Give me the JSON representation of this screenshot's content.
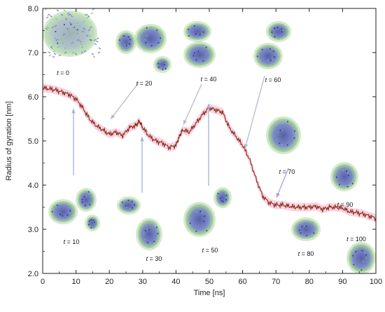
{
  "chart_data": {
    "type": "line",
    "xlabel": "Time [ns]",
    "ylabel": "Radius of gyration [nm]",
    "xlim": [
      0,
      100
    ],
    "ylim": [
      2.0,
      8.0
    ],
    "x_ticks": [
      0,
      10,
      20,
      30,
      40,
      50,
      60,
      70,
      80,
      90,
      100
    ],
    "y_ticks": [
      "2.0",
      "3.0",
      "4.0",
      "5.0",
      "6.0",
      "7.0",
      "8.0"
    ],
    "grid": false,
    "line_color": "#8b2a10",
    "band_color": "#f6c6dc",
    "series": [
      {
        "x": [
          0,
          2,
          4,
          6,
          8,
          10,
          12,
          14,
          16,
          18,
          20,
          22,
          24,
          26,
          28,
          29,
          30,
          32,
          34,
          36,
          38,
          40,
          41,
          42,
          44,
          46,
          48,
          50,
          52,
          54,
          56,
          58,
          60,
          62,
          64,
          66,
          68,
          70,
          72,
          74,
          76,
          78,
          80,
          82,
          84,
          86,
          88,
          90,
          92,
          94,
          96,
          98,
          100
        ],
        "values": [
          6.2,
          6.18,
          6.15,
          6.1,
          6.05,
          5.95,
          5.75,
          5.5,
          5.35,
          5.25,
          5.15,
          5.2,
          5.12,
          5.3,
          5.35,
          5.45,
          5.3,
          5.1,
          5.0,
          4.95,
          4.85,
          4.9,
          5.1,
          5.25,
          5.2,
          5.4,
          5.6,
          5.75,
          5.7,
          5.65,
          5.3,
          5.1,
          4.9,
          4.6,
          4.15,
          3.75,
          3.6,
          3.55,
          3.55,
          3.52,
          3.5,
          3.5,
          3.5,
          3.52,
          3.45,
          3.5,
          3.5,
          3.48,
          3.4,
          3.38,
          3.35,
          3.3,
          3.25
        ]
      }
    ],
    "snapshots": [
      {
        "label": "t = 0",
        "t": "t",
        "rest": " = 0"
      },
      {
        "label": "t = 10",
        "t": "t",
        "rest": " = 10"
      },
      {
        "label": "t = 20",
        "t": "t",
        "rest": " = 20"
      },
      {
        "label": "t = 30",
        "t": "t",
        "rest": " = 30"
      },
      {
        "label": "t = 40",
        "t": "t",
        "rest": " = 40"
      },
      {
        "label": "t = 50",
        "t": "t",
        "rest": " = 50"
      },
      {
        "label": "t = 60",
        "t": "t",
        "rest": " = 60"
      },
      {
        "label": "t = 70",
        "t": "t",
        "rest": " = 70"
      },
      {
        "label": "t = 80",
        "t": "t",
        "rest": " = 80"
      },
      {
        "label": "t = 90",
        "t": "t",
        "rest": " = 90"
      },
      {
        "label": "t = 100",
        "t": "t",
        "rest": " = 100"
      }
    ]
  }
}
